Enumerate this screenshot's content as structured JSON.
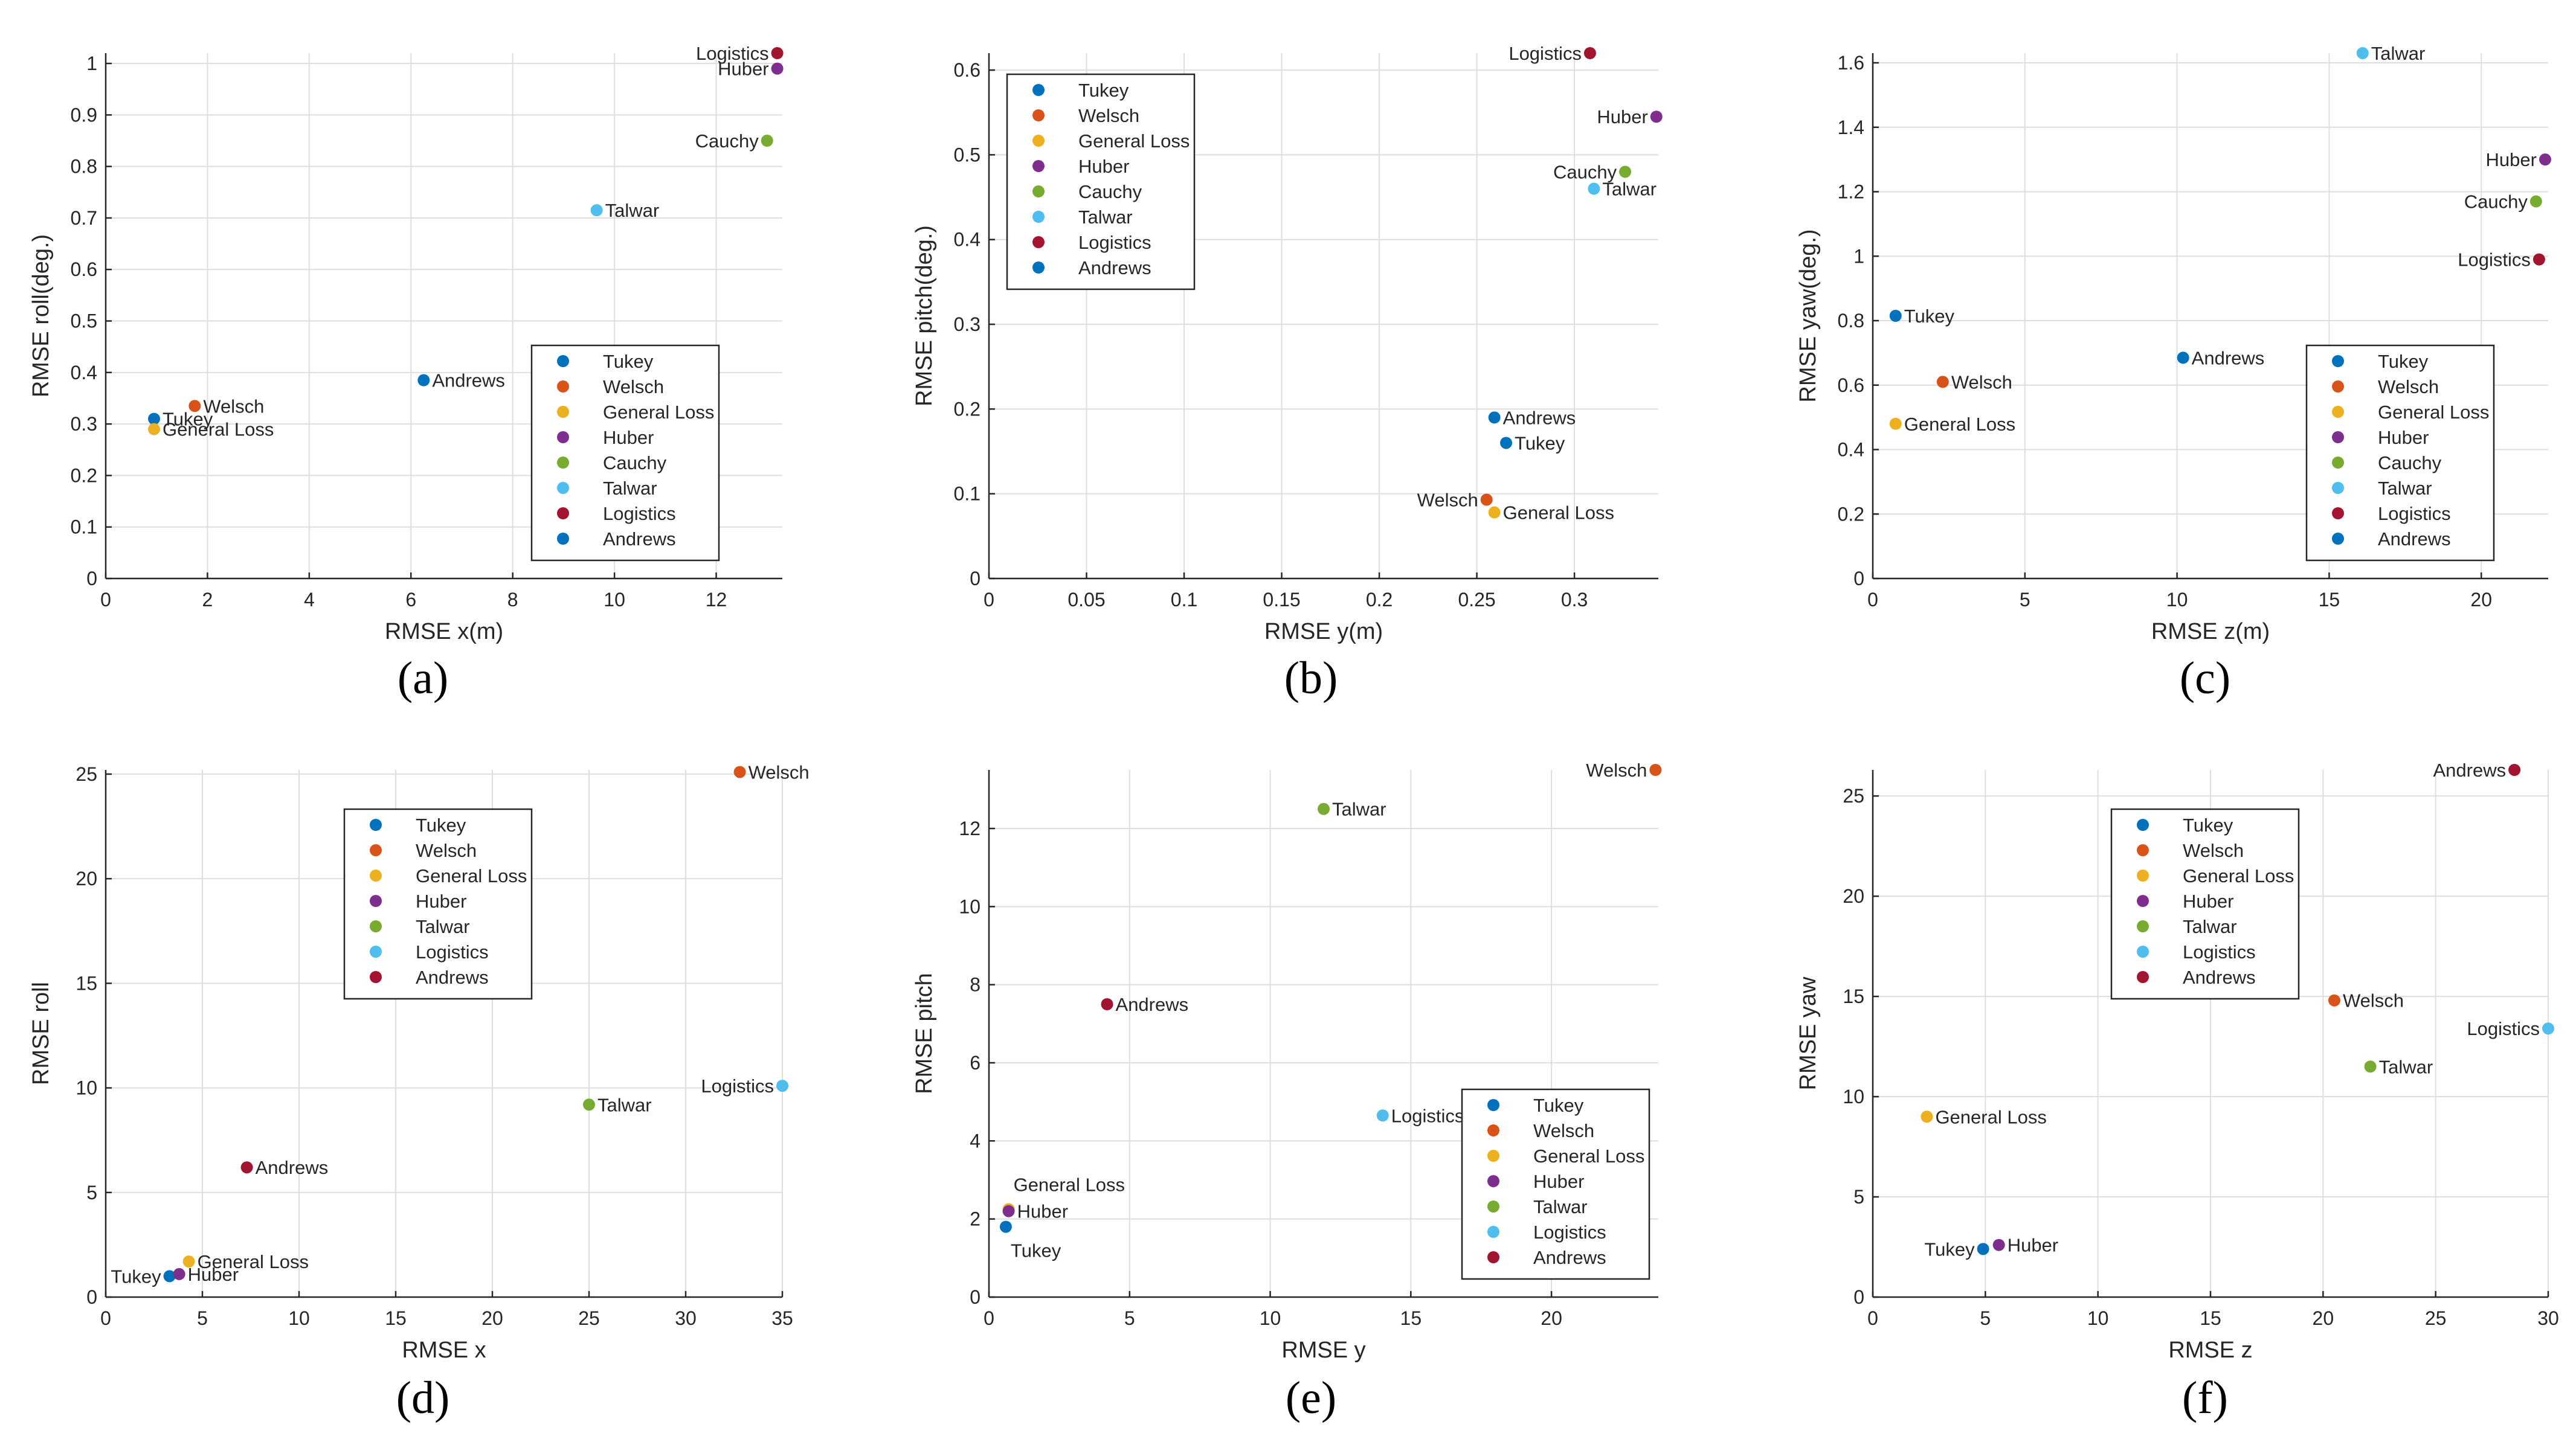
{
  "captions": [
    "(a)",
    "(b)",
    "(c)",
    "(d)",
    "(e)",
    "(f)"
  ],
  "chart_data": [
    {
      "type": "scatter",
      "caption": "(a)",
      "xlabel": "RMSE x(m)",
      "ylabel": "RMSE roll(deg.)",
      "xlim": [
        0,
        13.3
      ],
      "ylim": [
        0,
        1.02
      ],
      "xticks": [
        0,
        2,
        4,
        6,
        8,
        10,
        12
      ],
      "yticks": [
        0,
        0.1,
        0.2,
        0.3,
        0.4,
        0.5,
        0.6,
        0.7,
        0.8,
        0.9,
        1
      ],
      "grid": true,
      "legend_position": "lower-right",
      "series": [
        {
          "name": "Tukey",
          "color": "#0072BD",
          "x": 0.95,
          "y": 0.31,
          "label_side": "right"
        },
        {
          "name": "Welsch",
          "color": "#D95319",
          "x": 1.75,
          "y": 0.335,
          "label_side": "right"
        },
        {
          "name": "General Loss",
          "color": "#EDB120",
          "x": 0.95,
          "y": 0.29,
          "label_side": "right"
        },
        {
          "name": "Huber",
          "color": "#7E2F8E",
          "x": 13.2,
          "y": 0.99,
          "label_side": "left"
        },
        {
          "name": "Cauchy",
          "color": "#77AC30",
          "x": 13.0,
          "y": 0.85,
          "label_side": "left"
        },
        {
          "name": "Talwar",
          "color": "#4DBEEE",
          "x": 9.65,
          "y": 0.715,
          "label_side": "right"
        },
        {
          "name": "Logistics",
          "color": "#A2142F",
          "x": 13.2,
          "y": 1.02,
          "label_side": "left"
        },
        {
          "name": "Andrews",
          "color": "#0072BD",
          "x": 6.25,
          "y": 0.385,
          "label_side": "right"
        }
      ]
    },
    {
      "type": "scatter",
      "caption": "(b)",
      "xlabel": "RMSE y(m)",
      "ylabel": "RMSE pitch(deg.)",
      "xlim": [
        0,
        0.343
      ],
      "ylim": [
        0,
        0.62
      ],
      "xticks": [
        0,
        0.05,
        0.1,
        0.15,
        0.2,
        0.25,
        0.3
      ],
      "yticks": [
        0,
        0.1,
        0.2,
        0.3,
        0.4,
        0.5,
        0.6
      ],
      "grid": true,
      "legend_position": "upper-left",
      "series": [
        {
          "name": "Tukey",
          "color": "#0072BD",
          "x": 0.265,
          "y": 0.16,
          "label_side": "right"
        },
        {
          "name": "Welsch",
          "color": "#D95319",
          "x": 0.255,
          "y": 0.093,
          "label_side": "left"
        },
        {
          "name": "General Loss",
          "color": "#EDB120",
          "x": 0.259,
          "y": 0.078,
          "label_side": "right"
        },
        {
          "name": "Huber",
          "color": "#7E2F8E",
          "x": 0.342,
          "y": 0.545,
          "label_side": "left"
        },
        {
          "name": "Cauchy",
          "color": "#77AC30",
          "x": 0.326,
          "y": 0.48,
          "label_side": "left"
        },
        {
          "name": "Talwar",
          "color": "#4DBEEE",
          "x": 0.31,
          "y": 0.46,
          "label_side": "right"
        },
        {
          "name": "Logistics",
          "color": "#A2142F",
          "x": 0.308,
          "y": 0.62,
          "label_side": "left"
        },
        {
          "name": "Andrews",
          "color": "#0072BD",
          "x": 0.259,
          "y": 0.19,
          "label_side": "right"
        }
      ]
    },
    {
      "type": "scatter",
      "caption": "(c)",
      "xlabel": "RMSE z(m)",
      "ylabel": "RMSE yaw(deg.)",
      "xlim": [
        0,
        22.2
      ],
      "ylim": [
        0,
        1.63
      ],
      "xticks": [
        0,
        5,
        10,
        15,
        20
      ],
      "yticks": [
        0,
        0.2,
        0.4,
        0.6,
        0.8,
        1,
        1.2,
        1.4,
        1.6
      ],
      "grid": true,
      "legend_position": "lower-right",
      "series": [
        {
          "name": "Tukey",
          "color": "#0072BD",
          "x": 0.75,
          "y": 0.815,
          "label_side": "right"
        },
        {
          "name": "Welsch",
          "color": "#D95319",
          "x": 2.3,
          "y": 0.61,
          "label_side": "right"
        },
        {
          "name": "General Loss",
          "color": "#EDB120",
          "x": 0.75,
          "y": 0.48,
          "label_side": "right"
        },
        {
          "name": "Huber",
          "color": "#7E2F8E",
          "x": 22.1,
          "y": 1.3,
          "label_side": "left"
        },
        {
          "name": "Cauchy",
          "color": "#77AC30",
          "x": 21.8,
          "y": 1.17,
          "label_side": "left"
        },
        {
          "name": "Talwar",
          "color": "#4DBEEE",
          "x": 16.1,
          "y": 1.63,
          "label_side": "right"
        },
        {
          "name": "Logistics",
          "color": "#A2142F",
          "x": 21.9,
          "y": 0.99,
          "label_side": "left"
        },
        {
          "name": "Andrews",
          "color": "#0072BD",
          "x": 10.2,
          "y": 0.685,
          "label_side": "right"
        }
      ]
    },
    {
      "type": "scatter",
      "caption": "(d)",
      "xlabel": "RMSE x",
      "ylabel": "RMSE roll",
      "xlim": [
        0,
        35
      ],
      "ylim": [
        0,
        25.2
      ],
      "xticks": [
        0,
        5,
        10,
        15,
        20,
        25,
        30,
        35
      ],
      "yticks": [
        0,
        5,
        10,
        15,
        20,
        25
      ],
      "grid": true,
      "legend_position": "upper-left",
      "series": [
        {
          "name": "Tukey",
          "color": "#0072BD",
          "x": 3.3,
          "y": 1.0,
          "label_side": "left"
        },
        {
          "name": "Welsch",
          "color": "#D95319",
          "x": 32.8,
          "y": 25.1,
          "label_side": "right"
        },
        {
          "name": "General Loss",
          "color": "#EDB120",
          "x": 4.3,
          "y": 1.7,
          "label_side": "right"
        },
        {
          "name": "Huber",
          "color": "#7E2F8E",
          "x": 3.8,
          "y": 1.1,
          "label_side": "right"
        },
        {
          "name": "Talwar",
          "color": "#77AC30",
          "x": 25.0,
          "y": 9.2,
          "label_side": "right"
        },
        {
          "name": "Logistics",
          "color": "#4DBEEE",
          "x": 35.0,
          "y": 10.1,
          "label_side": "left"
        },
        {
          "name": "Andrews",
          "color": "#A2142F",
          "x": 7.3,
          "y": 6.2,
          "label_side": "right"
        }
      ]
    },
    {
      "type": "scatter",
      "caption": "(e)",
      "xlabel": "RMSE y",
      "ylabel": "RMSE pitch",
      "xlim": [
        0,
        23.8
      ],
      "ylim": [
        0,
        13.5
      ],
      "xticks": [
        0,
        5,
        10,
        15,
        20
      ],
      "yticks": [
        0,
        2,
        4,
        6,
        8,
        10,
        12
      ],
      "grid": true,
      "legend_position": "lower-right",
      "series": [
        {
          "name": "Tukey",
          "color": "#0072BD",
          "x": 0.6,
          "y": 1.8,
          "label_side": "below"
        },
        {
          "name": "Welsch",
          "color": "#D95319",
          "x": 23.7,
          "y": 13.5,
          "label_side": "left"
        },
        {
          "name": "General Loss",
          "color": "#EDB120",
          "x": 0.7,
          "y": 2.25,
          "label_side": "above"
        },
        {
          "name": "Huber",
          "color": "#7E2F8E",
          "x": 0.7,
          "y": 2.2,
          "label_side": "right"
        },
        {
          "name": "Talwar",
          "color": "#77AC30",
          "x": 11.9,
          "y": 12.5,
          "label_side": "right"
        },
        {
          "name": "Logistics",
          "color": "#4DBEEE",
          "x": 14.0,
          "y": 4.65,
          "label_side": "right"
        },
        {
          "name": "Andrews",
          "color": "#A2142F",
          "x": 4.2,
          "y": 7.5,
          "label_side": "right"
        }
      ]
    },
    {
      "type": "scatter",
      "caption": "(f)",
      "xlabel": "RMSE z",
      "ylabel": "RMSE yaw",
      "xlim": [
        0,
        30
      ],
      "ylim": [
        0,
        26.3
      ],
      "xticks": [
        0,
        5,
        10,
        15,
        20,
        25,
        30
      ],
      "yticks": [
        0,
        5,
        10,
        15,
        20,
        25
      ],
      "grid": true,
      "legend_position": "upper-left",
      "series": [
        {
          "name": "Tukey",
          "color": "#0072BD",
          "x": 4.9,
          "y": 2.4,
          "label_side": "left"
        },
        {
          "name": "Welsch",
          "color": "#D95319",
          "x": 20.5,
          "y": 14.8,
          "label_side": "right"
        },
        {
          "name": "General Loss",
          "color": "#EDB120",
          "x": 2.4,
          "y": 9.0,
          "label_side": "right"
        },
        {
          "name": "Huber",
          "color": "#7E2F8E",
          "x": 5.6,
          "y": 2.6,
          "label_side": "right"
        },
        {
          "name": "Talwar",
          "color": "#77AC30",
          "x": 22.1,
          "y": 11.5,
          "label_side": "right"
        },
        {
          "name": "Logistics",
          "color": "#4DBEEE",
          "x": 30.0,
          "y": 13.4,
          "label_side": "left"
        },
        {
          "name": "Andrews",
          "color": "#A2142F",
          "x": 28.5,
          "y": 26.3,
          "label_side": "left"
        }
      ]
    }
  ]
}
